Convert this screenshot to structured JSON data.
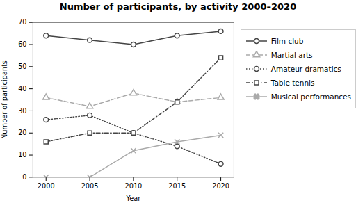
{
  "chart_data": {
    "type": "line",
    "title": "Number of participants, by activity 2000–2020",
    "xlabel": "Year",
    "ylabel": "Number of participants",
    "x": [
      2000,
      2005,
      2010,
      2015,
      2020
    ],
    "series": [
      {
        "name": "Film club",
        "color": "#444444",
        "marker": "circle",
        "line_style": "solid",
        "values": [
          64,
          62,
          60,
          64,
          66
        ]
      },
      {
        "name": "Martial arts",
        "color": "#aaaaaa",
        "marker": "triangle",
        "line_style": "dashed",
        "values": [
          36,
          32,
          38,
          34,
          36
        ]
      },
      {
        "name": "Amateur dramatics",
        "color": "#444444",
        "marker": "circle",
        "line_style": "dotted",
        "values": [
          26,
          28,
          20,
          14,
          6
        ]
      },
      {
        "name": "Table tennis",
        "color": "#444444",
        "marker": "square",
        "line_style": "dashdot",
        "values": [
          16,
          20,
          20,
          34,
          54
        ]
      },
      {
        "name": "Musical performances",
        "color": "#aaaaaa",
        "marker": "x",
        "line_style": "solid",
        "values": [
          0,
          0,
          12,
          16,
          19
        ]
      }
    ],
    "xlim": [
      1998.5,
      2021.5
    ],
    "xticks": [
      2000,
      2005,
      2010,
      2015,
      2020
    ],
    "ylim": [
      0,
      70
    ],
    "yticks": [
      0,
      10,
      20,
      30,
      40,
      50,
      60,
      70
    ],
    "grid": false,
    "legend": "right"
  }
}
